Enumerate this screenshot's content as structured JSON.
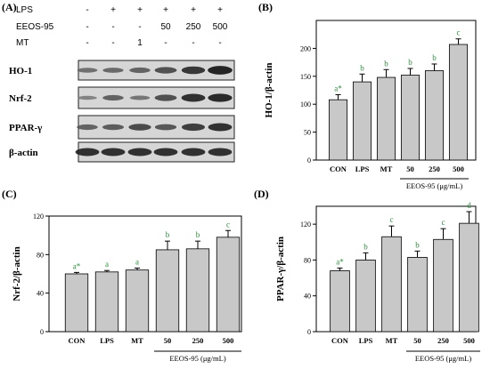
{
  "blot": {
    "panel_label": "(A)",
    "treatment_rows": [
      {
        "label": "LPS",
        "values": [
          "-",
          "+",
          "+",
          "+",
          "+",
          "+"
        ]
      },
      {
        "label": "EEOS-95",
        "values": [
          "-",
          "-",
          "-",
          "50",
          "250",
          "500"
        ]
      },
      {
        "label": "MT",
        "values": [
          "-",
          "-",
          "1",
          "-",
          "-",
          "-"
        ]
      }
    ],
    "bands": [
      {
        "label": "HO-1",
        "intensities": [
          0.35,
          0.4,
          0.45,
          0.6,
          0.8,
          0.95
        ]
      },
      {
        "label": "Nrf-2",
        "intensities": [
          0.2,
          0.45,
          0.3,
          0.6,
          0.85,
          0.9
        ]
      },
      {
        "label": "PPAR-γ",
        "intensities": [
          0.45,
          0.5,
          0.65,
          0.55,
          0.75,
          0.85
        ]
      },
      {
        "label": "β-actin",
        "intensities": [
          0.85,
          0.85,
          0.85,
          0.85,
          0.85,
          0.85
        ]
      }
    ]
  },
  "colors": {
    "bar_fill": "#c8c8c8",
    "letter_color": "#2e8b3c",
    "axis": "#000000"
  },
  "chart_data": [
    {
      "panel_label": "(B)",
      "type": "bar",
      "categories": [
        "CON",
        "LPS",
        "MT",
        "50",
        "250",
        "500"
      ],
      "values": [
        108,
        140,
        148,
        152,
        160,
        207
      ],
      "errors": [
        9,
        14,
        14,
        12,
        12,
        10
      ],
      "letters": [
        "a*",
        "b",
        "b",
        "b",
        "b",
        "c"
      ],
      "ylabel": "HO-1/β-actin",
      "ylim": [
        0,
        250
      ],
      "yticks": [
        0,
        50,
        100,
        150,
        200
      ],
      "group_label": "EEOS-95 (μg/mL)",
      "group_categories": [
        "50",
        "250",
        "500"
      ]
    },
    {
      "panel_label": "(C)",
      "type": "bar",
      "categories": [
        "CON",
        "LPS",
        "MT",
        "50",
        "250",
        "500"
      ],
      "values": [
        60,
        62,
        64,
        85,
        86,
        98
      ],
      "errors": [
        1.5,
        1.5,
        2,
        9,
        8,
        7
      ],
      "letters": [
        "a*",
        "a",
        "a",
        "b",
        "b",
        "c"
      ],
      "ylabel": "Nrf-2/β-actin",
      "ylim": [
        0,
        120
      ],
      "yticks": [
        0,
        40,
        80,
        120
      ],
      "group_label": "EEOS-95 (μg/mL)",
      "group_categories": [
        "50",
        "250",
        "500"
      ]
    },
    {
      "panel_label": "(D)",
      "type": "bar",
      "categories": [
        "CON",
        "LPS",
        "MT",
        "50",
        "250",
        "500"
      ],
      "values": [
        68,
        80,
        106,
        83,
        103,
        121
      ],
      "errors": [
        3,
        8,
        12,
        7,
        12,
        13
      ],
      "letters": [
        "a*",
        "b",
        "c",
        "b",
        "c",
        "d"
      ],
      "ylabel": "PPAR-γ/β-actin",
      "ylim": [
        0,
        140
      ],
      "yticks": [
        0,
        40,
        80,
        120
      ],
      "group_label": "EEOS-95 (μg/mL)",
      "group_categories": [
        "50",
        "250",
        "500"
      ]
    }
  ]
}
